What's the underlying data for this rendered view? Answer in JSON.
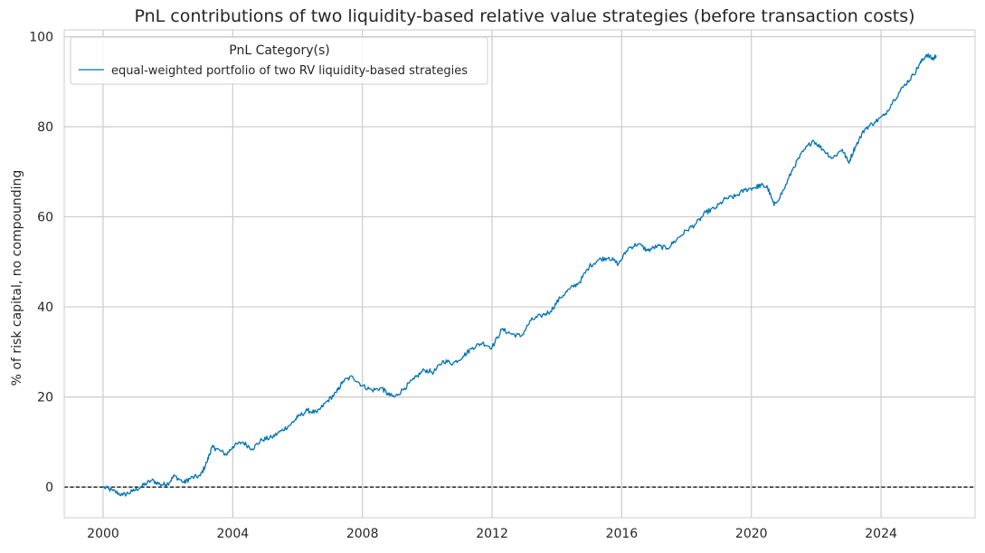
{
  "chart_data": {
    "type": "line",
    "title": "PnL contributions of two liquidity-based relative value strategies (before transaction costs)",
    "xlabel": "",
    "ylabel": "% of risk capital, no compounding",
    "xlim": [
      1998.8,
      2026.9
    ],
    "ylim": [
      -6.8,
      101.5
    ],
    "x_ticks": [
      2000,
      2004,
      2008,
      2012,
      2016,
      2020,
      2024
    ],
    "x_tick_labels": [
      "2000",
      "2004",
      "2008",
      "2012",
      "2016",
      "2020",
      "2024"
    ],
    "y_ticks": [
      0,
      20,
      40,
      60,
      80,
      100
    ],
    "y_tick_labels": [
      "0",
      "20",
      "40",
      "60",
      "80",
      "100"
    ],
    "grid": true,
    "reference_line": {
      "y": 0,
      "style": "dashed",
      "color": "#000000"
    },
    "legend": {
      "title": "PnL Category(s)",
      "position": "top-left",
      "entries": [
        "equal-weighted portfolio of two RV liquidity-based strategies"
      ]
    },
    "series": [
      {
        "name": "equal-weighted portfolio of two RV liquidity-based strategies",
        "color": "#0173b2",
        "x": [
          2000.0,
          2000.3,
          2000.6,
          2000.9,
          2001.2,
          2001.5,
          2001.8,
          2002.0,
          2002.2,
          2002.5,
          2002.7,
          2003.0,
          2003.2,
          2003.35,
          2003.5,
          2003.8,
          2004.0,
          2004.3,
          2004.6,
          2004.9,
          2005.2,
          2005.5,
          2005.8,
          2006.0,
          2006.3,
          2006.6,
          2006.9,
          2007.2,
          2007.4,
          2007.7,
          2008.0,
          2008.3,
          2008.6,
          2008.8,
          2009.0,
          2009.3,
          2009.6,
          2009.9,
          2010.2,
          2010.5,
          2010.8,
          2011.1,
          2011.4,
          2011.7,
          2012.0,
          2012.3,
          2012.6,
          2012.9,
          2013.2,
          2013.5,
          2013.8,
          2014.1,
          2014.4,
          2014.7,
          2015.0,
          2015.3,
          2015.6,
          2015.9,
          2016.2,
          2016.5,
          2016.8,
          2017.1,
          2017.4,
          2017.7,
          2018.0,
          2018.3,
          2018.6,
          2018.9,
          2019.2,
          2019.5,
          2019.8,
          2020.1,
          2020.3,
          2020.5,
          2020.7,
          2021.0,
          2021.3,
          2021.6,
          2021.9,
          2022.2,
          2022.5,
          2022.8,
          2023.0,
          2023.2,
          2023.5,
          2023.8,
          2024.1,
          2024.4,
          2024.7,
          2025.0,
          2025.2,
          2025.4,
          2025.6,
          2025.7
        ],
        "values": [
          0.0,
          -0.8,
          -1.8,
          -1.0,
          0.2,
          1.5,
          0.5,
          0.8,
          2.5,
          1.0,
          2.0,
          2.5,
          5.5,
          8.8,
          8.5,
          7.2,
          9.0,
          10.0,
          8.5,
          10.5,
          11.0,
          12.5,
          14.0,
          15.5,
          17.0,
          16.5,
          19.0,
          21.0,
          23.5,
          24.5,
          22.5,
          21.5,
          22.0,
          20.5,
          20.0,
          22.0,
          24.0,
          26.0,
          25.5,
          28.0,
          27.5,
          29.0,
          31.0,
          32.0,
          31.0,
          35.0,
          34.0,
          33.5,
          37.0,
          38.0,
          39.0,
          42.0,
          44.0,
          45.5,
          49.0,
          50.5,
          51.0,
          49.5,
          53.0,
          54.0,
          52.5,
          53.5,
          53.0,
          55.0,
          57.0,
          58.5,
          61.0,
          62.0,
          64.0,
          64.5,
          66.0,
          66.5,
          67.0,
          66.5,
          62.5,
          66.0,
          71.0,
          74.5,
          77.0,
          75.0,
          73.0,
          75.0,
          72.0,
          75.5,
          79.5,
          81.0,
          82.5,
          86.0,
          89.0,
          91.5,
          94.0,
          96.0,
          95.0,
          95.8
        ]
      }
    ]
  }
}
